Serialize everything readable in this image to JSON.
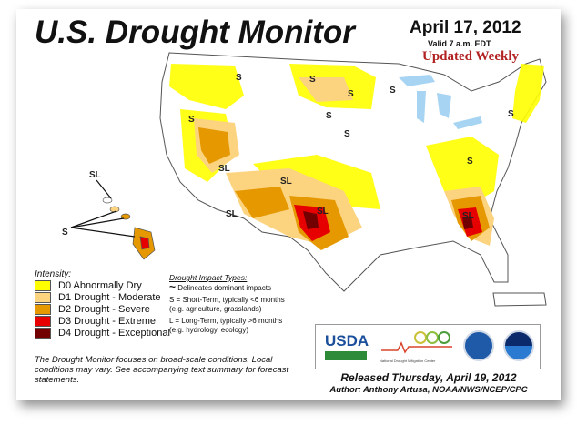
{
  "header": {
    "title": "U.S. Drought Monitor",
    "date": "April 17, 2012",
    "valid": "Valid 7 a.m. EDT",
    "updated": "Updated Weekly"
  },
  "legend": {
    "heading": "Intensity:",
    "items": [
      {
        "label": "D0 Abnormally Dry",
        "color": "#ffff00"
      },
      {
        "label": "D1 Drought - Moderate",
        "color": "#fcd37f"
      },
      {
        "label": "D2 Drought - Severe",
        "color": "#e69800"
      },
      {
        "label": "D3 Drought - Extreme",
        "color": "#e60000"
      },
      {
        "label": "D4 Drought - Exceptional",
        "color": "#730000"
      }
    ]
  },
  "impact": {
    "heading": "Drought Impact Types:",
    "delineates": "Delineates dominant impacts",
    "short": "S = Short-Term, typically <6 months",
    "short_eg": "(e.g. agriculture, grasslands)",
    "long": "L = Long-Term, typically >6 months",
    "long_eg": "(e.g. hydrology, ecology)"
  },
  "note": "The Drought Monitor focuses on broad-scale conditions. Local conditions may vary. See accompanying text summary for forecast statements.",
  "logos": {
    "usda": "USDA",
    "ndmc": "National Drought Mitigation Center"
  },
  "footer": {
    "released": "Released Thursday, April 19, 2012",
    "author": "Author: Anthony Artusa, NOAA/NWS/NCEP/CPC"
  },
  "map": {
    "labels": [
      "S",
      "S",
      "S",
      "S",
      "S",
      "S",
      "SL",
      "SL",
      "SL",
      "SL",
      "SL",
      "S",
      "S",
      "S",
      "SL",
      "S"
    ]
  }
}
